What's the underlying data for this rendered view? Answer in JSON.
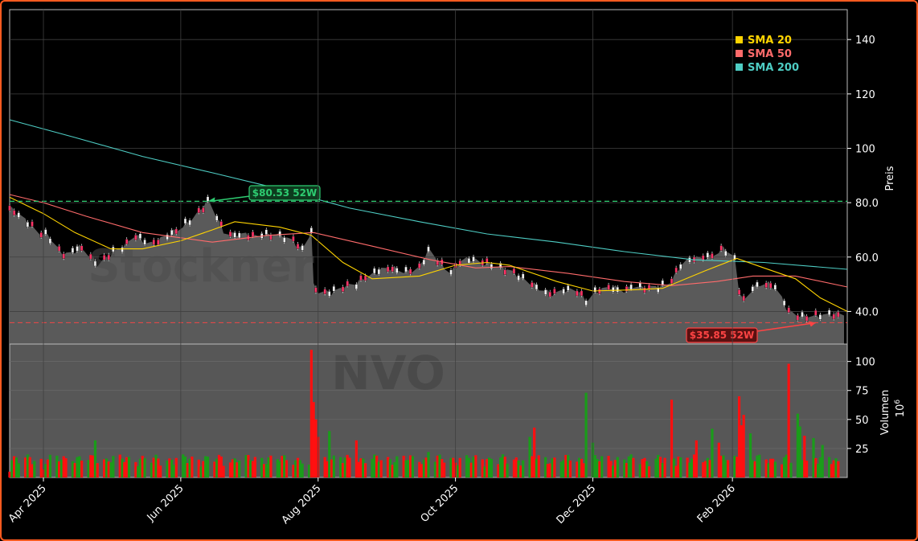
{
  "chart_data": [
    {
      "type": "candlestick",
      "ticker_watermark": "NVO",
      "logo_watermark": "Stockner",
      "ylabel": "Preis",
      "ylim": [
        28,
        151
      ],
      "yticks": [
        40,
        60,
        80,
        100,
        120,
        140
      ],
      "ytick_labels": [
        "40.0",
        "60.0",
        "80.0",
        "100",
        "120",
        "140"
      ],
      "xlabels": [
        {
          "date": "2025-04-01",
          "label": "Apr 2025"
        },
        {
          "date": "2025-06-01",
          "label": "Jun 2025"
        },
        {
          "date": "2025-08-01",
          "label": "Aug 2025"
        },
        {
          "date": "2025-10-01",
          "label": "Oct 2025"
        },
        {
          "date": "2025-12-01",
          "label": "Dec 2025"
        },
        {
          "date": "2026-02-01",
          "label": "Feb 2026"
        }
      ],
      "date_range": [
        "2025-03-17",
        "2026-03-20"
      ],
      "close_series": [
        [
          "2025-03-17",
          78
        ],
        [
          "2025-03-21",
          75
        ],
        [
          "2025-03-26",
          72
        ],
        [
          "2025-03-31",
          69
        ],
        [
          "2025-04-03",
          68
        ],
        [
          "2025-04-07",
          63
        ],
        [
          "2025-04-10",
          61
        ],
        [
          "2025-04-14",
          62
        ],
        [
          "2025-04-17",
          64
        ],
        [
          "2025-04-22",
          60
        ],
        [
          "2025-04-25",
          57
        ],
        [
          "2025-04-29",
          60
        ],
        [
          "2025-05-02",
          62
        ],
        [
          "2025-05-07",
          64
        ],
        [
          "2025-05-12",
          68
        ],
        [
          "2025-05-16",
          66
        ],
        [
          "2025-05-21",
          65
        ],
        [
          "2025-05-27",
          68
        ],
        [
          "2025-06-02",
          72
        ],
        [
          "2025-06-06",
          74
        ],
        [
          "2025-06-10",
          77
        ],
        [
          "2025-06-13",
          80.5
        ],
        [
          "2025-06-17",
          75
        ],
        [
          "2025-06-20",
          70
        ],
        [
          "2025-06-25",
          68
        ],
        [
          "2025-07-01",
          67.5
        ],
        [
          "2025-07-07",
          68.5
        ],
        [
          "2025-07-14",
          68
        ],
        [
          "2025-07-21",
          66
        ],
        [
          "2025-07-25",
          63
        ],
        [
          "2025-07-28",
          68
        ],
        [
          "2025-07-29",
          70
        ],
        [
          "2025-07-30",
          49
        ],
        [
          "2025-08-01",
          47
        ],
        [
          "2025-08-06",
          47
        ],
        [
          "2025-08-12",
          49
        ],
        [
          "2025-08-18",
          50
        ],
        [
          "2025-08-22",
          53
        ],
        [
          "2025-08-28",
          55
        ],
        [
          "2025-09-03",
          55.5
        ],
        [
          "2025-09-09",
          55
        ],
        [
          "2025-09-15",
          56
        ],
        [
          "2025-09-19",
          62
        ],
        [
          "2025-09-24",
          58
        ],
        [
          "2025-09-29",
          55
        ],
        [
          "2025-10-03",
          58
        ],
        [
          "2025-10-09",
          59
        ],
        [
          "2025-10-15",
          58
        ],
        [
          "2025-10-21",
          56
        ],
        [
          "2025-10-27",
          54
        ],
        [
          "2025-11-03",
          51
        ],
        [
          "2025-11-07",
          48
        ],
        [
          "2025-11-12",
          46.5
        ],
        [
          "2025-11-18",
          48
        ],
        [
          "2025-11-24",
          47.5
        ],
        [
          "2025-11-28",
          44
        ],
        [
          "2025-12-03",
          48
        ],
        [
          "2025-12-09",
          48.5
        ],
        [
          "2025-12-15",
          47.5
        ],
        [
          "2025-12-19",
          50
        ],
        [
          "2025-12-26",
          48
        ],
        [
          "2025-12-31",
          49
        ],
        [
          "2026-01-05",
          52
        ],
        [
          "2026-01-09",
          57
        ],
        [
          "2026-01-14",
          59
        ],
        [
          "2026-01-20",
          60
        ],
        [
          "2026-01-23",
          61
        ],
        [
          "2026-01-28",
          63
        ],
        [
          "2026-02-02",
          59
        ],
        [
          "2026-02-04",
          48
        ],
        [
          "2026-02-06",
          44
        ],
        [
          "2026-02-10",
          49
        ],
        [
          "2026-02-16",
          50
        ],
        [
          "2026-02-21",
          48.5
        ],
        [
          "2026-02-26",
          40
        ],
        [
          "2026-03-03",
          38
        ],
        [
          "2026-03-09",
          38.5
        ],
        [
          "2026-03-14",
          39
        ],
        [
          "2026-03-20",
          38.5
        ]
      ],
      "sma_20": [
        [
          "2025-03-17",
          82
        ],
        [
          "2025-04-01",
          76
        ],
        [
          "2025-04-15",
          69
        ],
        [
          "2025-05-01",
          63
        ],
        [
          "2025-05-15",
          63
        ],
        [
          "2025-06-01",
          66
        ],
        [
          "2025-06-15",
          70
        ],
        [
          "2025-06-25",
          73
        ],
        [
          "2025-07-15",
          71
        ],
        [
          "2025-07-29",
          68
        ],
        [
          "2025-08-12",
          58
        ],
        [
          "2025-08-25",
          52
        ],
        [
          "2025-09-15",
          53
        ],
        [
          "2025-10-01",
          57
        ],
        [
          "2025-10-15",
          58
        ],
        [
          "2025-10-25",
          57
        ],
        [
          "2025-11-15",
          51
        ],
        [
          "2025-12-01",
          47.5
        ],
        [
          "2025-12-20",
          48
        ],
        [
          "2026-01-01",
          48.5
        ],
        [
          "2026-01-20",
          55
        ],
        [
          "2026-02-03",
          59.5
        ],
        [
          "2026-02-15",
          56
        ],
        [
          "2026-03-01",
          52
        ],
        [
          "2026-03-12",
          45
        ],
        [
          "2026-03-24",
          40
        ]
      ],
      "sma_50": [
        [
          "2025-03-17",
          83
        ],
        [
          "2025-04-01",
          80
        ],
        [
          "2025-04-20",
          75
        ],
        [
          "2025-05-15",
          69
        ],
        [
          "2025-06-15",
          65.5
        ],
        [
          "2025-07-10",
          68
        ],
        [
          "2025-07-30",
          69
        ],
        [
          "2025-08-25",
          64
        ],
        [
          "2025-09-20",
          59
        ],
        [
          "2025-10-10",
          56
        ],
        [
          "2025-10-25",
          56.5
        ],
        [
          "2025-11-20",
          54
        ],
        [
          "2025-12-15",
          51
        ],
        [
          "2026-01-05",
          49.5
        ],
        [
          "2026-01-25",
          51
        ],
        [
          "2026-02-10",
          53
        ],
        [
          "2026-03-01",
          53
        ],
        [
          "2026-03-24",
          49
        ]
      ],
      "sma_200": [
        [
          "2025-03-17",
          110.5
        ],
        [
          "2025-04-15",
          104
        ],
        [
          "2025-05-15",
          97
        ],
        [
          "2025-06-15",
          91
        ],
        [
          "2025-07-15",
          85
        ],
        [
          "2025-08-15",
          78
        ],
        [
          "2025-09-15",
          73
        ],
        [
          "2025-10-15",
          68.5
        ],
        [
          "2025-11-15",
          65.5
        ],
        [
          "2025-12-15",
          62
        ],
        [
          "2026-01-15",
          59
        ],
        [
          "2026-02-15",
          58
        ],
        [
          "2026-03-24",
          55.5
        ]
      ],
      "legend": [
        {
          "name": "SMA 20",
          "color": "#ffd400"
        },
        {
          "name": "SMA 50",
          "color": "#ff6b6b"
        },
        {
          "name": "SMA 200",
          "color": "#4ecdc4"
        }
      ],
      "annotations": [
        {
          "label": "$80.53 52W",
          "value": 80.53,
          "date": "2025-06-13",
          "color": "#2ecc71"
        },
        {
          "label": "$35.85 52W",
          "value": 35.85,
          "date": "2026-03-10",
          "color": "#ff4444"
        }
      ],
      "colors": {
        "up": "#1a9c1a",
        "down": "#ff1010",
        "area": "#5a5a5a",
        "grid": "#404040"
      }
    },
    {
      "type": "bar",
      "ylabel": "Volumen",
      "ylabel_unit": "10^6",
      "ylim": [
        0,
        115
      ],
      "yticks": [
        25,
        50,
        75,
        100
      ],
      "ytick_labels": [
        "25",
        "50",
        "75",
        "100"
      ],
      "volume_spikes": [
        [
          "2025-03-17",
          5,
          "down"
        ],
        [
          "2025-04-01",
          7,
          "down"
        ],
        [
          "2025-04-14",
          14,
          "up"
        ],
        [
          "2025-04-24",
          32,
          "up"
        ],
        [
          "2025-05-20",
          17,
          "down"
        ],
        [
          "2025-06-20",
          10,
          "down"
        ],
        [
          "2025-07-28",
          11,
          "up"
        ],
        [
          "2025-07-29",
          110,
          "down"
        ],
        [
          "2025-07-30",
          65,
          "down"
        ],
        [
          "2025-07-31",
          50,
          "down"
        ],
        [
          "2025-08-01",
          35,
          "down"
        ],
        [
          "2025-08-06",
          40,
          "up"
        ],
        [
          "2025-08-18",
          32,
          "down"
        ],
        [
          "2025-09-19",
          22,
          "up"
        ],
        [
          "2025-10-15",
          16,
          "down"
        ],
        [
          "2025-11-03",
          35,
          "up"
        ],
        [
          "2025-11-05",
          43,
          "down"
        ],
        [
          "2025-11-28",
          73,
          "up"
        ],
        [
          "2025-12-01",
          30,
          "up"
        ],
        [
          "2026-01-05",
          67,
          "down"
        ],
        [
          "2026-01-08",
          18,
          "down"
        ],
        [
          "2026-01-16",
          32,
          "down"
        ],
        [
          "2026-01-23",
          42,
          "up"
        ],
        [
          "2026-01-26",
          30,
          "down"
        ],
        [
          "2026-02-04",
          70,
          "down"
        ],
        [
          "2026-02-05",
          45,
          "down"
        ],
        [
          "2026-02-06",
          54,
          "down"
        ],
        [
          "2026-02-09",
          38,
          "up"
        ],
        [
          "2026-02-26",
          98,
          "down"
        ],
        [
          "2026-03-02",
          55,
          "up"
        ],
        [
          "2026-03-03",
          44,
          "up"
        ],
        [
          "2026-03-05",
          36,
          "down"
        ],
        [
          "2026-03-09",
          34,
          "up"
        ],
        [
          "2026-03-13",
          28,
          "up"
        ],
        [
          "2026-03-20",
          14,
          "down"
        ]
      ]
    }
  ]
}
